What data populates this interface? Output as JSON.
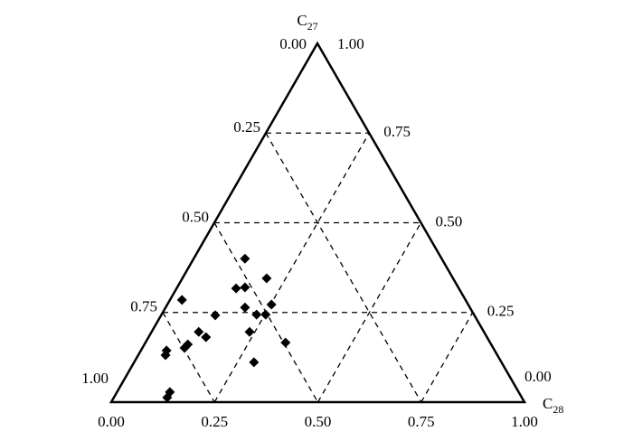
{
  "chart_data": {
    "type": "ternary",
    "top_label": "C27",
    "bottom_label": "C28",
    "bottom_ticks": [
      {
        "value": 0,
        "label": "0.00"
      },
      {
        "value": 0.25,
        "label": "0.25"
      },
      {
        "value": 0.5,
        "label": "0.50"
      },
      {
        "value": 0.75,
        "label": "0.75"
      },
      {
        "value": 1,
        "label": "1.00"
      }
    ],
    "left_ticks": [
      {
        "value": 0,
        "label": "0.00"
      },
      {
        "value": 0.25,
        "label": "0.25"
      },
      {
        "value": 0.5,
        "label": "0.50"
      },
      {
        "value": 0.75,
        "label": "0.75"
      },
      {
        "value": 1,
        "label": "1.00"
      }
    ],
    "right_ticks": [
      {
        "value": 0,
        "label": "0.00"
      },
      {
        "value": 0.25,
        "label": "0.25"
      },
      {
        "value": 0.5,
        "label": "0.50"
      },
      {
        "value": 0.75,
        "label": "0.75"
      },
      {
        "value": 1,
        "label": "1.00"
      }
    ],
    "grid": true,
    "color": "#000000",
    "c28": [
      0.124,
      0.204,
      0.144,
      0.164,
      0.029,
      0.252,
      0.192,
      0.131,
      0.23,
      0.252,
      0.114,
      0.139,
      0.237,
      0.105,
      0.102,
      0.062,
      0.066,
      0.339,
      0.29,
      0.128,
      0.129
    ],
    "c27": [
      0.4,
      0.345,
      0.317,
      0.32,
      0.285,
      0.272,
      0.264,
      0.242,
      0.244,
      0.244,
      0.196,
      0.181,
      0.196,
      0.161,
      0.151,
      0.144,
      0.131,
      0.166,
      0.111,
      0.028,
      0.013
    ]
  }
}
